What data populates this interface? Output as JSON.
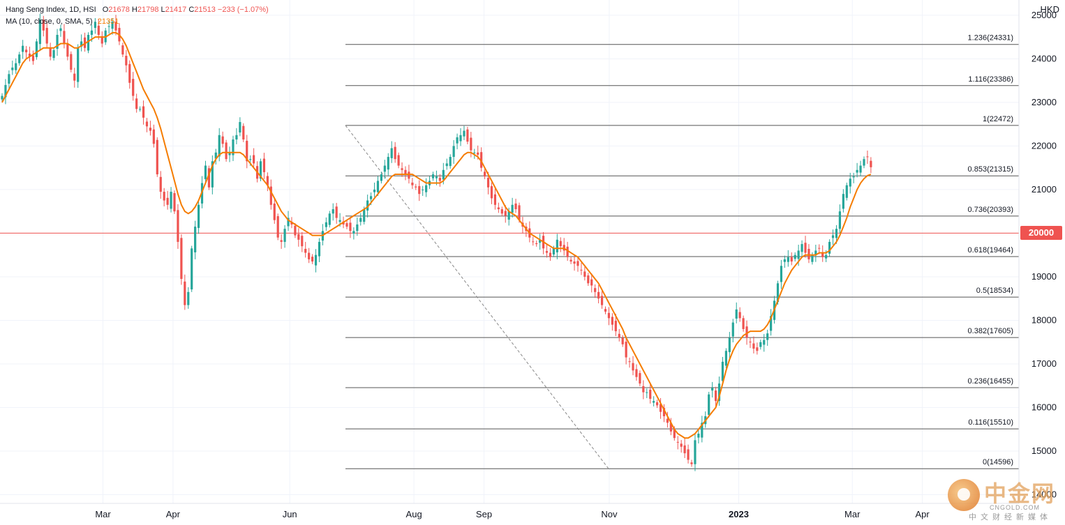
{
  "legend": {
    "symbol": "Hang Seng Index, 1D, HSI",
    "o_label": "O",
    "o_value": "21678",
    "h_label": "H",
    "h_value": "21798",
    "l_label": "L",
    "l_value": "21417",
    "c_label": "C",
    "c_value": "21513",
    "change": "−233 (−1.07%)",
    "ma_label": "MA (10, close, 0, SMA, 5)",
    "ma_value": "21351"
  },
  "currency": "HKD",
  "price_tag": "20000",
  "watermark": {
    "cn": "中金网",
    "en": "CNGOLD.COM",
    "sub": "中文财经新媒体"
  },
  "colors": {
    "up": "#26a69a",
    "down": "#ef5350",
    "ma": "#f57c00",
    "fib": "#555555",
    "grid": "#f0f3fa",
    "hline": "#ef5350"
  },
  "chart_data": {
    "type": "candlestick",
    "y_axis": {
      "ticks": [
        25000,
        24000,
        23000,
        22000,
        21000,
        20000,
        19000,
        18000,
        17000,
        16000,
        15000,
        14000
      ],
      "ylim": [
        13800,
        25350
      ]
    },
    "x_axis": {
      "ticks": [
        {
          "label": "Mar",
          "pos": 0.097
        },
        {
          "label": "Apr",
          "pos": 0.163
        },
        {
          "label": "Jun",
          "pos": 0.273
        },
        {
          "label": "Aug",
          "pos": 0.39
        },
        {
          "label": "Sep",
          "pos": 0.456
        },
        {
          "label": "Nov",
          "pos": 0.574
        },
        {
          "label": "2023",
          "pos": 0.696
        },
        {
          "label": "Mar",
          "pos": 0.803
        },
        {
          "label": "Apr",
          "pos": 0.869
        }
      ]
    },
    "horizontal_line": 20000,
    "fibonacci": [
      {
        "label": "1.236(24331)",
        "value": 24331
      },
      {
        "label": "1.116(23386)",
        "value": 23386
      },
      {
        "label": "1(22472)",
        "value": 22472
      },
      {
        "label": "0.853(21315)",
        "value": 21315
      },
      {
        "label": "0.736(20393)",
        "value": 20393
      },
      {
        "label": "0.618(19464)",
        "value": 19464
      },
      {
        "label": "0.5(18534)",
        "value": 18534
      },
      {
        "label": "0.382(17605)",
        "value": 17605
      },
      {
        "label": "0.236(16455)",
        "value": 16455
      },
      {
        "label": "0.116(15510)",
        "value": 15510
      },
      {
        "label": "0(14596)",
        "value": 14596
      }
    ],
    "fib_anchor": {
      "high_index": 100,
      "high_value": 22472,
      "low_index": 179,
      "low_value": 14596
    },
    "closes": [
      23150,
      23400,
      23650,
      23800,
      23900,
      24100,
      24300,
      24150,
      24050,
      23950,
      24400,
      24900,
      24650,
      24350,
      24050,
      24200,
      24550,
      24700,
      24350,
      24050,
      23750,
      23500,
      24250,
      24400,
      24250,
      24550,
      24650,
      24850,
      24550,
      24350,
      24650,
      24750,
      24850,
      24650,
      24400,
      24100,
      23850,
      23450,
      23150,
      22850,
      22850,
      22650,
      22450,
      22350,
      22050,
      21350,
      20950,
      20750,
      20650,
      20950,
      20500,
      19800,
      18950,
      18350,
      18650,
      19650,
      20150,
      20650,
      21150,
      21550,
      21050,
      21650,
      21850,
      22250,
      22050,
      21700,
      21850,
      22150,
      22250,
      22550,
      22150,
      21650,
      21700,
      21600,
      21250,
      21650,
      21400,
      21100,
      20650,
      20300,
      19900,
      19800,
      20100,
      20350,
      20200,
      19950,
      19850,
      19700,
      19550,
      19400,
      19350,
      19500,
      19800,
      20050,
      20250,
      20450,
      20550,
      20350,
      20300,
      20200,
      20150,
      20050,
      20050,
      20200,
      20350,
      20550,
      20750,
      20850,
      21000,
      21200,
      21350,
      21550,
      21750,
      21950,
      21700,
      21550,
      21450,
      21350,
      21250,
      21100,
      21050,
      20900,
      21000,
      21100,
      21200,
      21350,
      21300,
      21200,
      21450,
      21600,
      21750,
      22000,
      22200,
      22250,
      22350,
      22100,
      21900,
      21850,
      21800,
      21500,
      21300,
      21050,
      20800,
      20650,
      20550,
      20450,
      20400,
      20500,
      20650,
      20550,
      20300,
      20150,
      20050,
      19900,
      19800,
      19750,
      19850,
      19650,
      19550,
      19450,
      19650,
      19850,
      19700,
      19600,
      19450,
      19350,
      19300,
      19250,
      19150,
      19000,
      18850,
      18800,
      18650,
      18500,
      18350,
      18200,
      18050,
      17900,
      17750,
      17600,
      17450,
      17150,
      17050,
      16850,
      16700,
      16550,
      16350,
      16350,
      16200,
      16150,
      16050,
      15900,
      15800,
      15650,
      15450,
      15300,
      15200,
      15100,
      14950,
      14800,
      14700,
      15250,
      15400,
      15650,
      15800,
      16300,
      16450,
      16150,
      16550,
      17050,
      17300,
      17600,
      17950,
      18250,
      18050,
      17800,
      17600,
      17500,
      17350,
      17300,
      17500,
      17550,
      17700,
      18100,
      18450,
      18850,
      19250,
      19400,
      19450,
      19350,
      19500,
      19600,
      19750,
      19550,
      19400,
      19500,
      19600,
      19650,
      19450,
      19500,
      19800,
      19950,
      20100,
      20500,
      20900,
      21100,
      21250,
      21300,
      21450,
      21550,
      21700,
      21750,
      21513
    ],
    "ma_values": [
      23000,
      23150,
      23300,
      23450,
      23600,
      23750,
      23900,
      24000,
      24050,
      24100,
      24150,
      24200,
      24250,
      24250,
      24250,
      24250,
      24300,
      24350,
      24350,
      24350,
      24300,
      24250,
      24250,
      24300,
      24350,
      24400,
      24450,
      24500,
      24500,
      24500,
      24500,
      24550,
      24600,
      24600,
      24550,
      24450,
      24300,
      24100,
      23900,
      23700,
      23500,
      23300,
      23150,
      23000,
      22850,
      22650,
      22400,
      22100,
      21800,
      21500,
      21200,
      20900,
      20650,
      20500,
      20450,
      20500,
      20600,
      20750,
      20950,
      21150,
      21350,
      21550,
      21700,
      21800,
      21850,
      21850,
      21850,
      21850,
      21850,
      21850,
      21800,
      21700,
      21600,
      21500,
      21400,
      21300,
      21200,
      21100,
      20950,
      20800,
      20650,
      20500,
      20400,
      20300,
      20250,
      20200,
      20150,
      20100,
      20050,
      20000,
      19950,
      19950,
      19950,
      19950,
      20000,
      20050,
      20100,
      20150,
      20200,
      20250,
      20300,
      20350,
      20400,
      20450,
      20500,
      20550,
      20600,
      20700,
      20800,
      20900,
      21000,
      21100,
      21200,
      21300,
      21350,
      21350,
      21350,
      21350,
      21350,
      21350,
      21300,
      21250,
      21200,
      21150,
      21150,
      21150,
      21150,
      21150,
      21200,
      21300,
      21400,
      21500,
      21600,
      21700,
      21800,
      21850,
      21850,
      21800,
      21750,
      21650,
      21500,
      21350,
      21200,
      21050,
      20900,
      20750,
      20600,
      20500,
      20450,
      20400,
      20300,
      20200,
      20100,
      20000,
      19950,
      19900,
      19850,
      19800,
      19750,
      19700,
      19650,
      19650,
      19650,
      19650,
      19600,
      19550,
      19500,
      19450,
      19350,
      19250,
      19150,
      19050,
      18950,
      18850,
      18700,
      18550,
      18400,
      18250,
      18100,
      17950,
      17800,
      17600,
      17450,
      17300,
      17150,
      17000,
      16850,
      16700,
      16550,
      16400,
      16250,
      16100,
      15950,
      15800,
      15650,
      15500,
      15400,
      15350,
      15300,
      15300,
      15350,
      15400,
      15500,
      15600,
      15700,
      15800,
      15900,
      16000,
      16250,
      16550,
      16850,
      17100,
      17300,
      17450,
      17550,
      17650,
      17700,
      17750,
      17750,
      17750,
      17750,
      17800,
      17900,
      18050,
      18250,
      18450,
      18650,
      18850,
      19000,
      19150,
      19250,
      19350,
      19450,
      19500,
      19500,
      19500,
      19500,
      19550,
      19550,
      19550,
      19600,
      19700,
      19800,
      19950,
      20150,
      20350,
      20600,
      20800,
      21000,
      21150,
      21250,
      21320,
      21351
    ]
  }
}
